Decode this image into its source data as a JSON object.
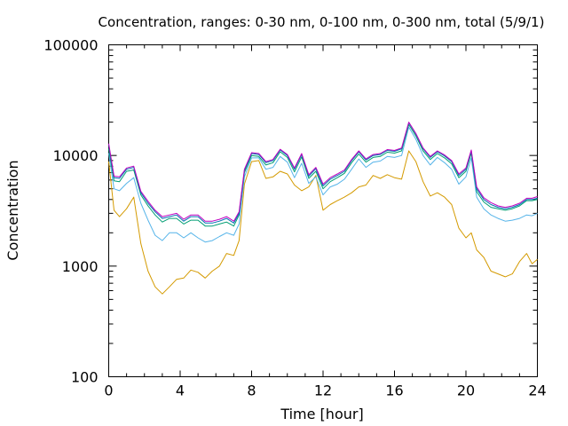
{
  "chart_data": {
    "type": "line",
    "title": "Concentration, ranges: 0-30 nm, 0-100 nm, 0-300 nm, total (5/9/1)",
    "xlabel": "Time [hour]",
    "ylabel": "Concentration",
    "xlim": [
      0,
      24
    ],
    "ylim": [
      100,
      100000
    ],
    "yscale": "log",
    "grid": false,
    "legend": "none",
    "x_ticks": [
      0,
      4,
      8,
      12,
      16,
      20,
      24
    ],
    "x_tick_labels": [
      "0",
      "4",
      "8",
      "12",
      "16",
      "20",
      "24"
    ],
    "y_ticks": [
      100,
      1000,
      10000,
      100000
    ],
    "y_tick_labels": [
      "100",
      "1000",
      "10000",
      "100000"
    ],
    "x": [
      0,
      0.3,
      0.6,
      1.0,
      1.4,
      1.8,
      2.2,
      2.6,
      3.0,
      3.4,
      3.8,
      4.2,
      4.6,
      5.0,
      5.4,
      5.8,
      6.2,
      6.6,
      7.0,
      7.3,
      7.6,
      8.0,
      8.4,
      8.8,
      9.2,
      9.6,
      10.0,
      10.4,
      10.8,
      11.2,
      11.6,
      12.0,
      12.4,
      12.8,
      13.2,
      13.6,
      14.0,
      14.4,
      14.8,
      15.2,
      15.6,
      16.0,
      16.4,
      16.8,
      17.2,
      17.6,
      18.0,
      18.4,
      18.8,
      19.2,
      19.6,
      20.0,
      20.3,
      20.6,
      21.0,
      21.4,
      21.8,
      22.2,
      22.6,
      23.0,
      23.4,
      23.7,
      24.0
    ],
    "series": [
      {
        "color": "#d49a00",
        "values": [
          8800,
          3200,
          2800,
          3300,
          4200,
          1600,
          900,
          650,
          560,
          650,
          760,
          780,
          920,
          880,
          780,
          900,
          1000,
          1300,
          1250,
          1700,
          5500,
          8800,
          9000,
          6200,
          6400,
          7200,
          6800,
          5400,
          4800,
          5200,
          6600,
          3200,
          3600,
          3900,
          4200,
          4600,
          5200,
          5400,
          6600,
          6200,
          6700,
          6300,
          6100,
          11000,
          8800,
          5800,
          4300,
          4600,
          4200,
          3600,
          2200,
          1800,
          2000,
          1400,
          1200,
          900,
          850,
          800,
          850,
          1100,
          1300,
          1050,
          1150
        ]
      },
      {
        "color": "#56b4e9",
        "values": [
          10500,
          5000,
          4800,
          5600,
          6300,
          3700,
          2600,
          1900,
          1700,
          2000,
          2000,
          1800,
          2000,
          1800,
          1650,
          1700,
          1850,
          2000,
          1900,
          2400,
          6400,
          9500,
          9500,
          7500,
          7800,
          9800,
          8700,
          6300,
          8500,
          5600,
          6400,
          4400,
          5200,
          5500,
          6100,
          7500,
          9300,
          7800,
          8700,
          8900,
          9800,
          9600,
          10000,
          18000,
          14000,
          10000,
          8200,
          9600,
          8600,
          7500,
          5500,
          6400,
          9500,
          4200,
          3300,
          2900,
          2700,
          2550,
          2600,
          2700,
          2900,
          2850,
          3000
        ]
      },
      {
        "color": "#009e73",
        "values": [
          11500,
          5900,
          5800,
          7200,
          7400,
          4400,
          3500,
          2900,
          2500,
          2700,
          2700,
          2400,
          2600,
          2600,
          2300,
          2300,
          2400,
          2500,
          2300,
          2900,
          7000,
          10000,
          9800,
          8200,
          8600,
          10800,
          9600,
          7100,
          9700,
          6200,
          7200,
          5000,
          5800,
          6300,
          6900,
          8600,
          10300,
          8700,
          9600,
          9800,
          10700,
          10500,
          11000,
          19000,
          15000,
          11000,
          9200,
          10400,
          9500,
          8400,
          6300,
          7200,
          10500,
          4700,
          3800,
          3400,
          3300,
          3200,
          3300,
          3500,
          3900,
          3900,
          4000
        ]
      },
      {
        "color": "#0072b2",
        "values": [
          12500,
          6300,
          6200,
          7500,
          7800,
          4600,
          3700,
          3100,
          2700,
          2800,
          2900,
          2550,
          2800,
          2800,
          2450,
          2450,
          2550,
          2700,
          2450,
          3000,
          7300,
          10400,
          10200,
          8600,
          9000,
          11200,
          10000,
          7500,
          10200,
          6500,
          7600,
          5300,
          6100,
          6600,
          7200,
          9000,
          10800,
          9100,
          10000,
          10200,
          11100,
          10900,
          11500,
          19800,
          15600,
          11500,
          9600,
          10800,
          9900,
          8800,
          6600,
          7500,
          11000,
          5000,
          4000,
          3600,
          3400,
          3300,
          3400,
          3600,
          4000,
          4000,
          4100
        ]
      },
      {
        "color": "#c000c0",
        "values": [
          12800,
          6500,
          6400,
          7700,
          8000,
          4750,
          3850,
          3200,
          2800,
          2900,
          3000,
          2650,
          2900,
          2900,
          2550,
          2550,
          2650,
          2800,
          2550,
          3100,
          7500,
          10600,
          10400,
          8800,
          9200,
          11400,
          10200,
          7700,
          10400,
          6700,
          7800,
          5500,
          6300,
          6800,
          7400,
          9200,
          11000,
          9300,
          10200,
          10400,
          11300,
          11100,
          11700,
          20000,
          15800,
          11700,
          9800,
          11000,
          10100,
          9000,
          6800,
          7700,
          11200,
          5200,
          4150,
          3750,
          3500,
          3400,
          3500,
          3700,
          4100,
          4100,
          4250
        ]
      }
    ]
  }
}
